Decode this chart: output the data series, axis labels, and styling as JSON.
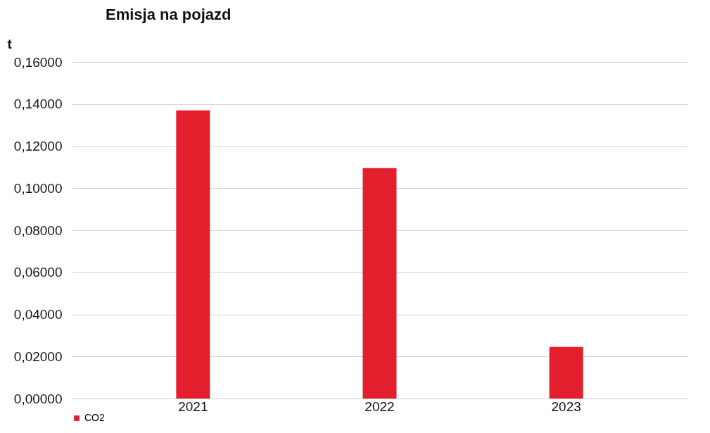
{
  "chart_data": {
    "type": "bar",
    "title": "Emisja na pojazd",
    "ylabel": "t",
    "categories": [
      "2021",
      "2022",
      "2023"
    ],
    "series": [
      {
        "name": "CO2",
        "color": "#e31e2d",
        "values": [
          0.137,
          0.1095,
          0.0245
        ]
      }
    ],
    "ylim": [
      0,
      0.16
    ],
    "yticks": [
      {
        "value": 0,
        "label": "0,00000"
      },
      {
        "value": 0.02,
        "label": "0,02000"
      },
      {
        "value": 0.04,
        "label": "0,04000"
      },
      {
        "value": 0.06,
        "label": "0,06000"
      },
      {
        "value": 0.08,
        "label": "0,08000"
      },
      {
        "value": 0.1,
        "label": "0,10000"
      },
      {
        "value": 0.12,
        "label": "0,12000"
      },
      {
        "value": 0.14,
        "label": "0,14000"
      },
      {
        "value": 0.16,
        "label": "0,16000"
      }
    ],
    "grid": "y",
    "legend": "bottom"
  }
}
